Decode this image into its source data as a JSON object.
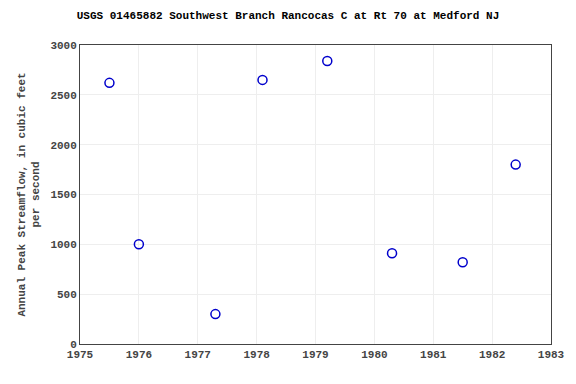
{
  "chart_data": {
    "type": "scatter",
    "title": "USGS 01465882 Southwest Branch Rancocas C at Rt 70 at Medford NJ",
    "ylabel": "Annual Peak Streamflow, in cubic feet\nper second",
    "x": [
      1975.5,
      1976.0,
      1977.3,
      1978.1,
      1979.2,
      1980.3,
      1981.5,
      1982.4
    ],
    "values": [
      2620,
      1000,
      300,
      2650,
      2840,
      910,
      820,
      1800
    ],
    "color": "#0000cc",
    "marker": "circle-open",
    "xlim": [
      1975,
      1983
    ],
    "ylim": [
      0,
      3000
    ],
    "xticks": [
      1975,
      1976,
      1977,
      1978,
      1979,
      1980,
      1981,
      1982,
      1983
    ],
    "yticks": [
      0,
      500,
      1000,
      1500,
      2000,
      2500,
      3000
    ],
    "grid": true
  }
}
